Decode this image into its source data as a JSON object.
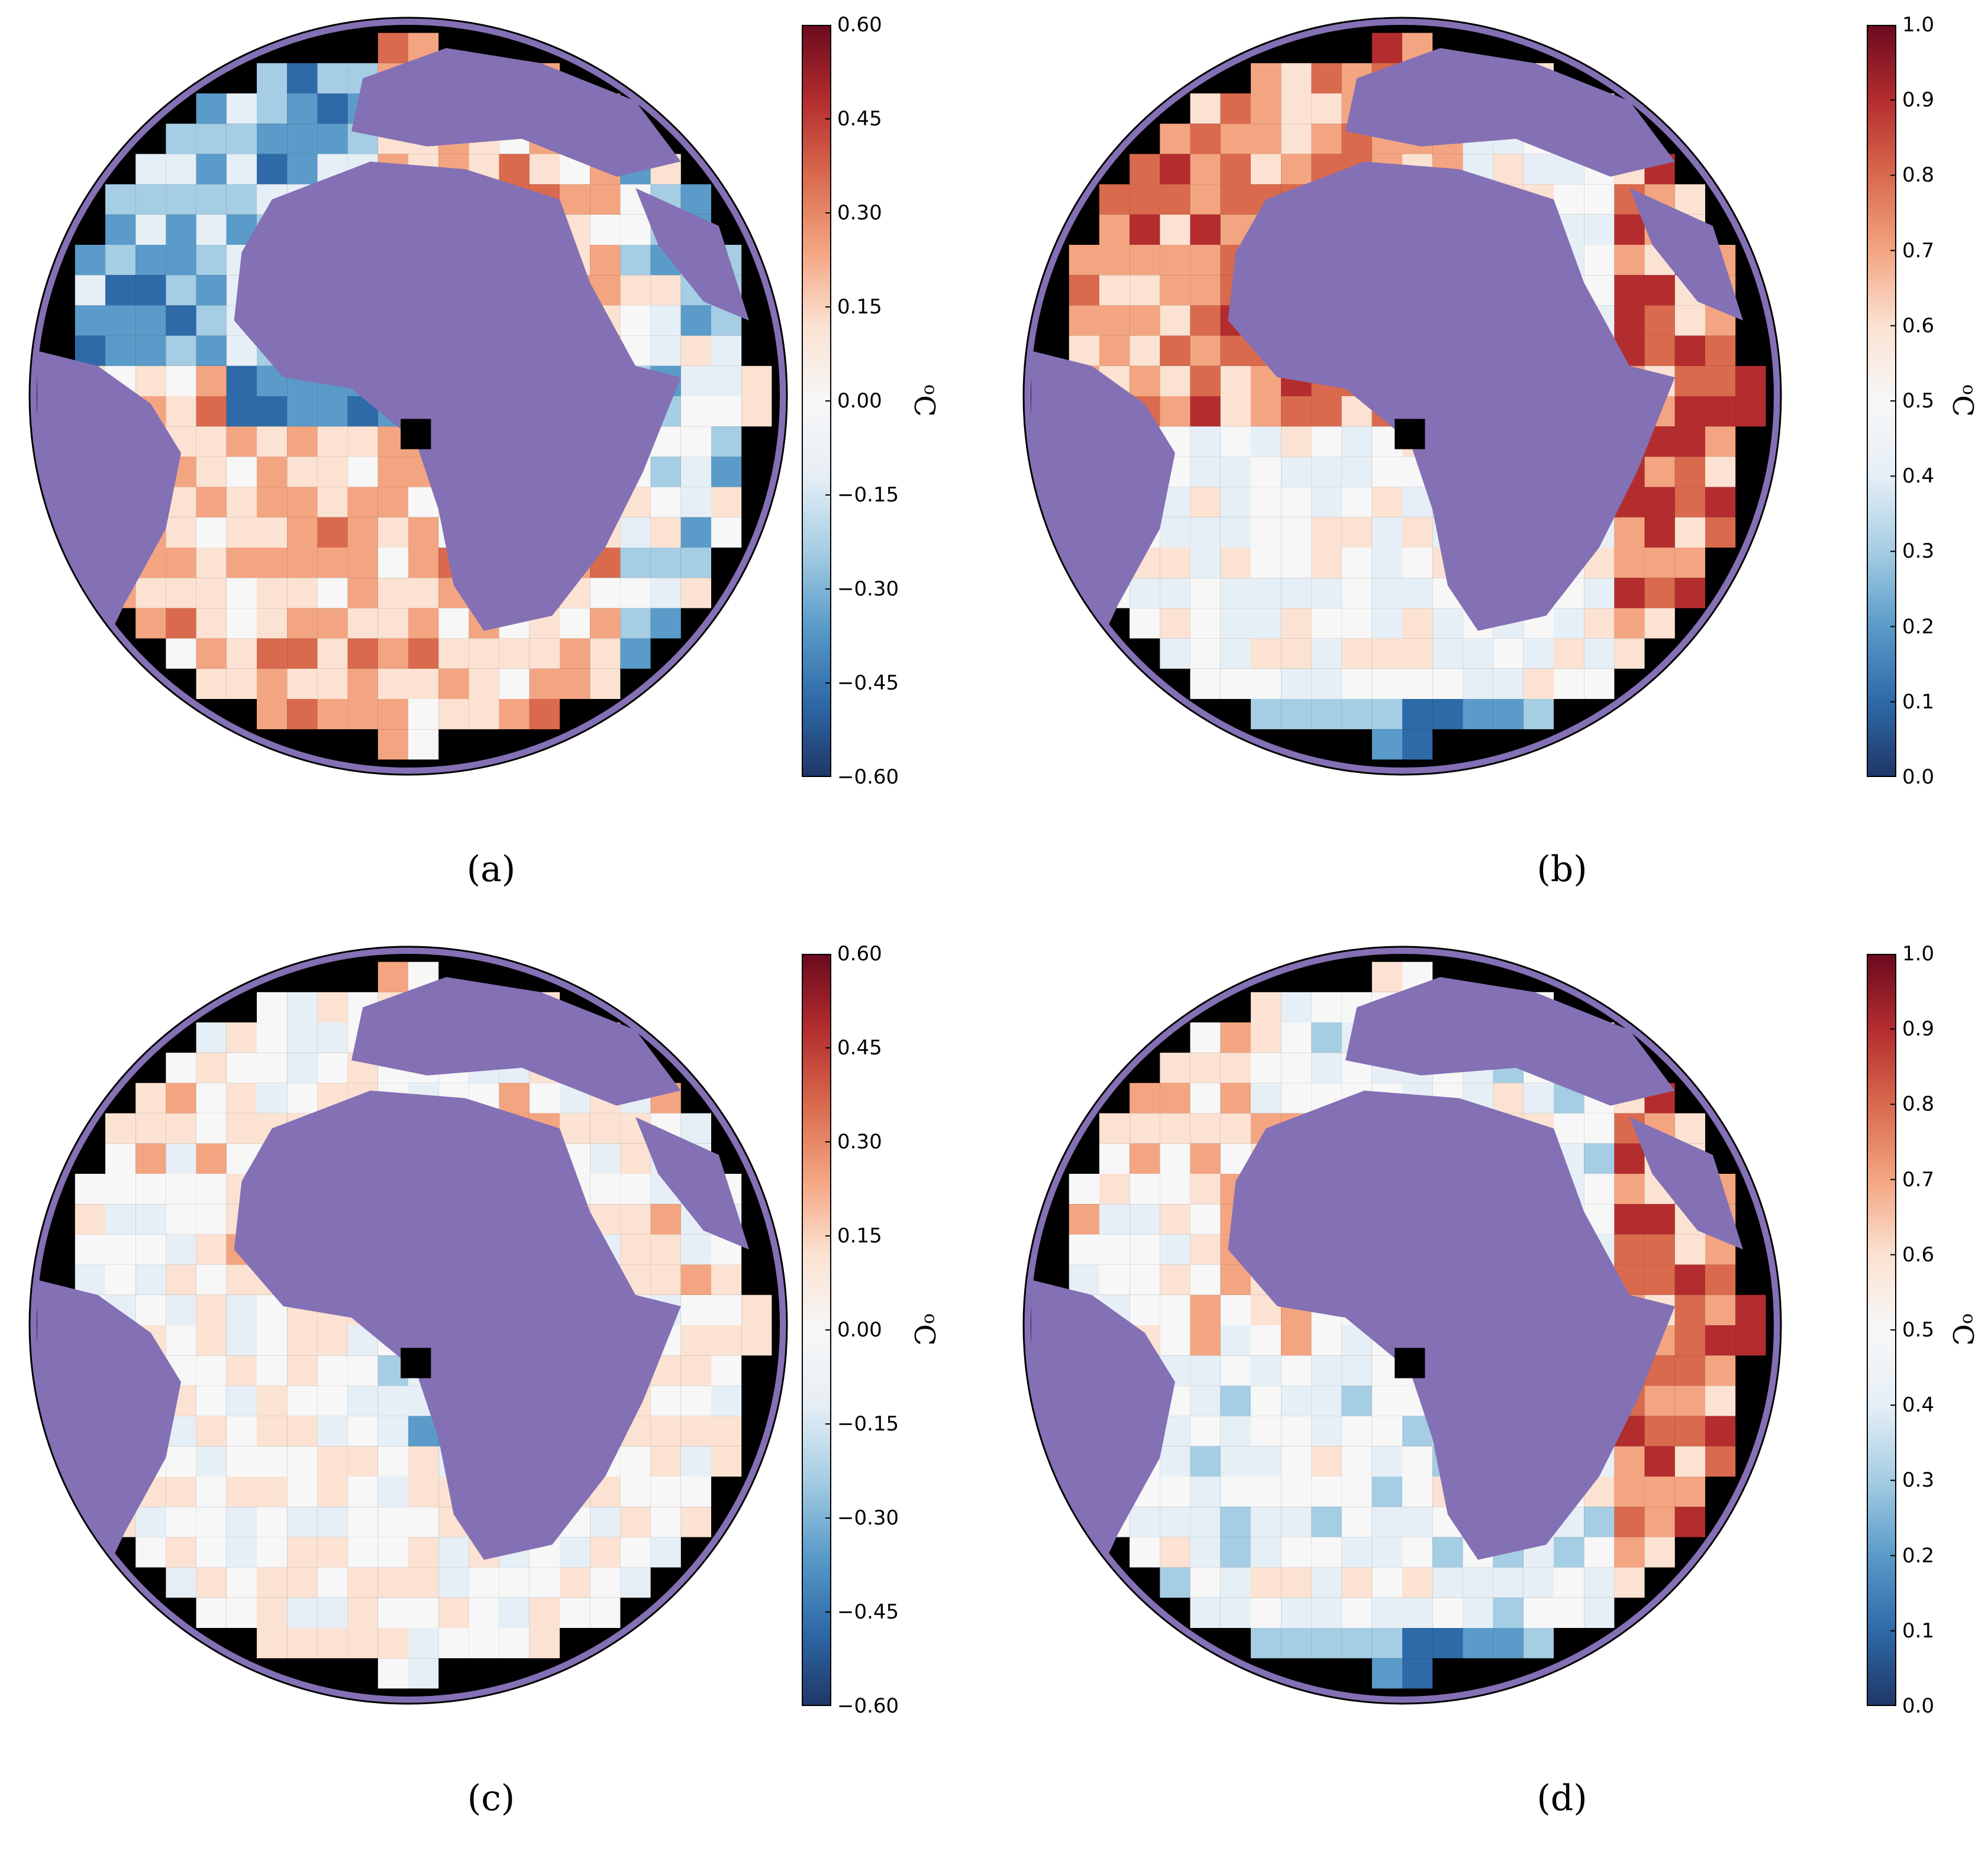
{
  "colors": {
    "land": "#8470b4",
    "outline": "#000000",
    "missing": "#000000",
    "cmap": [
      "#1f3768",
      "#2e6aa8",
      "#5a9bc9",
      "#a5cde3",
      "#e6eff6",
      "#f7f7f7",
      "#fbe2d2",
      "#f3a581",
      "#d96a4e",
      "#b42d2e",
      "#6b0a1e"
    ]
  },
  "panels": [
    {
      "id": "a",
      "caption": "(a)",
      "unit_main": "C",
      "unit_sup": "o",
      "ticks": [
        "0.60",
        "0.45",
        "0.30",
        "0.15",
        "0.00",
        "−0.15",
        "−0.30",
        "−0.45",
        "−0.60"
      ],
      "pattern": "bias_a"
    },
    {
      "id": "b",
      "caption": "(b)",
      "unit_main": "C",
      "unit_sup": "o",
      "ticks": [
        "1.0",
        "0.9",
        "0.8",
        "0.7",
        "0.6",
        "0.5",
        "0.4",
        "0.3",
        "0.2",
        "0.1",
        "0.0"
      ],
      "pattern": "rmse_b"
    },
    {
      "id": "c",
      "caption": "(c)",
      "unit_main": "C",
      "unit_sup": "o",
      "ticks": [
        "0.60",
        "0.45",
        "0.30",
        "0.15",
        "0.00",
        "−0.15",
        "−0.30",
        "−0.45",
        "−0.60"
      ],
      "pattern": "bias_c"
    },
    {
      "id": "d",
      "caption": "(d)",
      "unit_main": "C",
      "unit_sup": "o",
      "ticks": [
        "1.0",
        "0.9",
        "0.8",
        "0.7",
        "0.6",
        "0.5",
        "0.4",
        "0.3",
        "0.2",
        "0.1",
        "0.0"
      ],
      "pattern": "rmse_d"
    }
  ]
}
